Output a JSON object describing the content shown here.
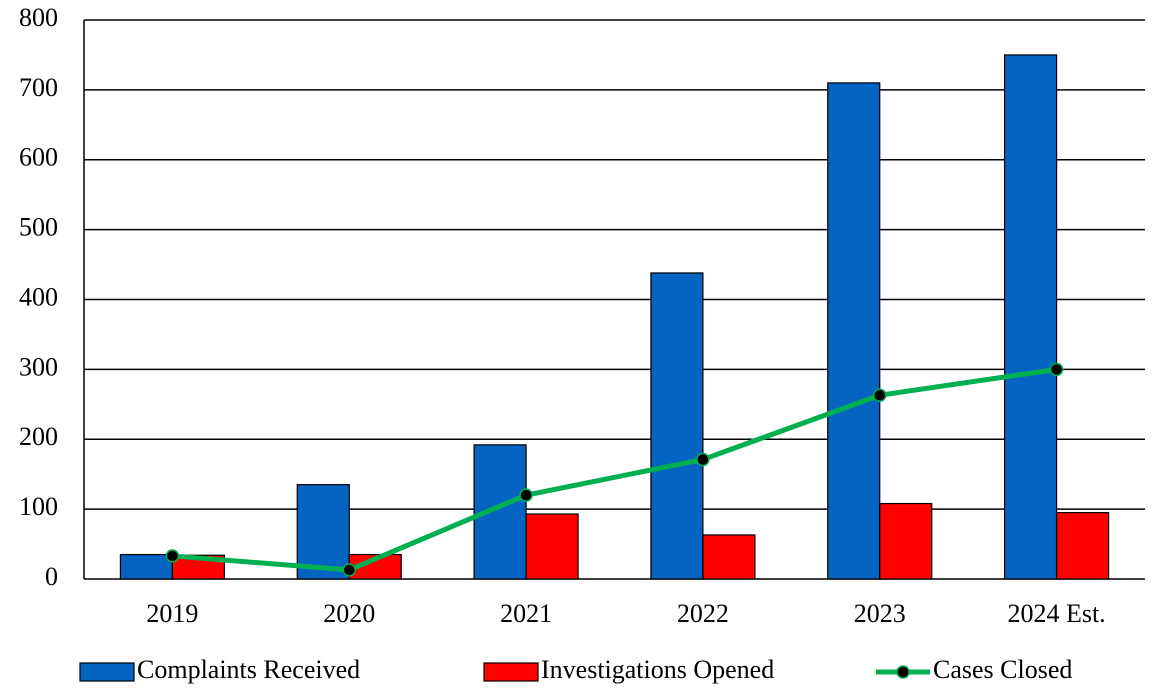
{
  "chart_data": {
    "type": "combo",
    "categories": [
      "2019",
      "2020",
      "2021",
      "2022",
      "2023",
      "2024 Est."
    ],
    "series": [
      {
        "name": "Complaints Received",
        "type": "bar",
        "color": "#0563c1",
        "values": [
          35,
          135,
          192,
          438,
          710,
          750
        ]
      },
      {
        "name": "Investigations Opened",
        "type": "bar",
        "color": "#ff0000",
        "values": [
          34,
          35,
          93,
          63,
          108,
          95
        ]
      },
      {
        "name": "Cases Closed",
        "type": "line",
        "color": "#00b050",
        "values": [
          33,
          13,
          120,
          171,
          263,
          300
        ]
      }
    ],
    "ylim": [
      0,
      800
    ],
    "yticks": [
      0,
      100,
      200,
      300,
      400,
      500,
      600,
      700,
      800
    ],
    "grid": true,
    "legend": "bottom"
  }
}
